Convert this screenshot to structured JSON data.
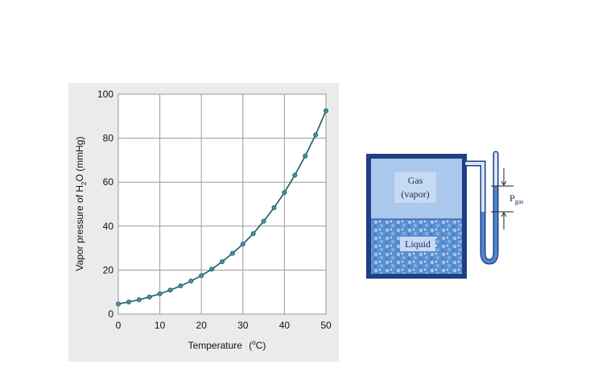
{
  "chart_data": {
    "type": "line",
    "xlabel_main": "Temperature",
    "xlabel_unit_open": "(",
    "xlabel_unit_sup": "o",
    "xlabel_unit_close": "C)",
    "ylabel_prefix": "Vapor pressure of H",
    "ylabel_sub": "2",
    "ylabel_suffix": "O  (mmHg)",
    "xlim": [
      0,
      50
    ],
    "ylim": [
      0,
      100
    ],
    "xticks": [
      0,
      10,
      20,
      30,
      40,
      50
    ],
    "yticks": [
      0,
      20,
      40,
      60,
      80,
      100
    ],
    "grid": true,
    "series": [
      {
        "x": [
          0,
          2.5,
          5,
          7.5,
          10,
          12.5,
          15,
          17.5,
          20,
          22.5,
          25,
          27.5,
          30,
          32.5,
          35,
          37.5,
          40,
          42.5,
          45,
          47.5,
          50
        ],
        "y": [
          4.6,
          5.5,
          6.5,
          7.8,
          9.2,
          10.9,
          12.8,
          15.0,
          17.5,
          20.4,
          23.8,
          27.6,
          31.8,
          36.6,
          42.2,
          48.4,
          55.3,
          63.2,
          71.9,
          81.5,
          92.5
        ]
      }
    ]
  },
  "diagram": {
    "gas_label_1": "Gas",
    "gas_label_2": "(vapor)",
    "liquid_label": "Liquid",
    "pgas_label": "P",
    "pgas_sub": "gas"
  }
}
